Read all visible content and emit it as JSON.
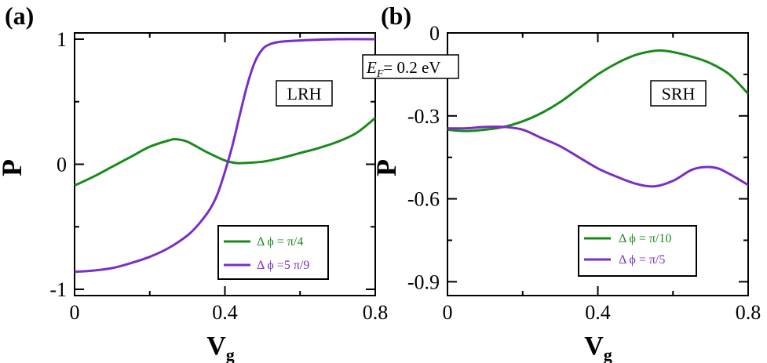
{
  "annotation": {
    "ef": "= 0.2 eV",
    "ef_symbol": "E",
    "ef_sub": "F"
  },
  "colors": {
    "green": "#1a8a1a",
    "purple": "#7a2ec4"
  },
  "chart_data": [
    {
      "type": "line",
      "panel_label": "(a)",
      "box_label": "LRH",
      "xlabel": "V",
      "xlabel_sub": "g",
      "ylabel": "P",
      "xlim": [
        0,
        0.8
      ],
      "ylim": [
        -1.05,
        1.05
      ],
      "xticks": [
        0,
        0.4,
        0.8
      ],
      "xtick_labels": [
        "0",
        "0.4",
        "0.8"
      ],
      "yticks": [
        -1,
        0,
        1
      ],
      "ytick_labels": [
        "-1",
        "0",
        "1"
      ],
      "legend": "bottom-right",
      "series": [
        {
          "name": "Δ ϕ = π/4",
          "color": "#1a8a1a",
          "x": [
            0,
            0.05,
            0.1,
            0.15,
            0.2,
            0.25,
            0.27,
            0.3,
            0.35,
            0.4,
            0.43,
            0.45,
            0.5,
            0.55,
            0.6,
            0.65,
            0.7,
            0.75,
            0.8
          ],
          "y": [
            -0.17,
            -0.1,
            -0.02,
            0.06,
            0.14,
            0.19,
            0.2,
            0.18,
            0.1,
            0.03,
            0.01,
            0.01,
            0.02,
            0.05,
            0.09,
            0.13,
            0.18,
            0.25,
            0.37
          ]
        },
        {
          "name": "Δ ϕ =5 π/9",
          "color": "#7a2ec4",
          "x": [
            0,
            0.05,
            0.1,
            0.15,
            0.2,
            0.25,
            0.3,
            0.33,
            0.36,
            0.38,
            0.4,
            0.42,
            0.44,
            0.46,
            0.48,
            0.5,
            0.52,
            0.55,
            0.6,
            0.7,
            0.8
          ],
          "y": [
            -0.86,
            -0.85,
            -0.83,
            -0.79,
            -0.74,
            -0.67,
            -0.57,
            -0.48,
            -0.36,
            -0.24,
            -0.06,
            0.15,
            0.4,
            0.64,
            0.82,
            0.92,
            0.96,
            0.98,
            0.99,
            1.0,
            1.0
          ]
        }
      ]
    },
    {
      "type": "line",
      "panel_label": "(b)",
      "box_label": "SRH",
      "xlabel": "V",
      "xlabel_sub": "g",
      "ylabel": "P",
      "xlim": [
        0,
        0.8
      ],
      "ylim": [
        -0.95,
        0.0
      ],
      "xticks": [
        0,
        0.4,
        0.8
      ],
      "xtick_labels": [
        "0",
        "0.4",
        "0.8"
      ],
      "yticks": [
        0,
        -0.3,
        -0.6,
        -0.9
      ],
      "ytick_labels": [
        "0",
        "-0.3",
        "-0.6",
        "-0.9"
      ],
      "legend": "bottom-right",
      "series": [
        {
          "name": "Δ ϕ = π/10",
          "color": "#1a8a1a",
          "x": [
            0,
            0.05,
            0.1,
            0.15,
            0.2,
            0.25,
            0.3,
            0.35,
            0.4,
            0.45,
            0.5,
            0.55,
            0.58,
            0.62,
            0.66,
            0.7,
            0.75,
            0.8
          ],
          "y": [
            -0.35,
            -0.355,
            -0.35,
            -0.34,
            -0.32,
            -0.29,
            -0.25,
            -0.2,
            -0.15,
            -0.11,
            -0.08,
            -0.065,
            -0.065,
            -0.075,
            -0.09,
            -0.11,
            -0.15,
            -0.22
          ]
        },
        {
          "name": "Δ ϕ = π/5",
          "color": "#7a2ec4",
          "x": [
            0,
            0.05,
            0.1,
            0.15,
            0.2,
            0.25,
            0.3,
            0.35,
            0.4,
            0.45,
            0.5,
            0.55,
            0.6,
            0.65,
            0.69,
            0.72,
            0.75,
            0.8
          ],
          "y": [
            -0.345,
            -0.345,
            -0.34,
            -0.34,
            -0.35,
            -0.38,
            -0.41,
            -0.45,
            -0.49,
            -0.52,
            -0.545,
            -0.555,
            -0.535,
            -0.495,
            -0.485,
            -0.49,
            -0.51,
            -0.55
          ]
        }
      ]
    }
  ]
}
